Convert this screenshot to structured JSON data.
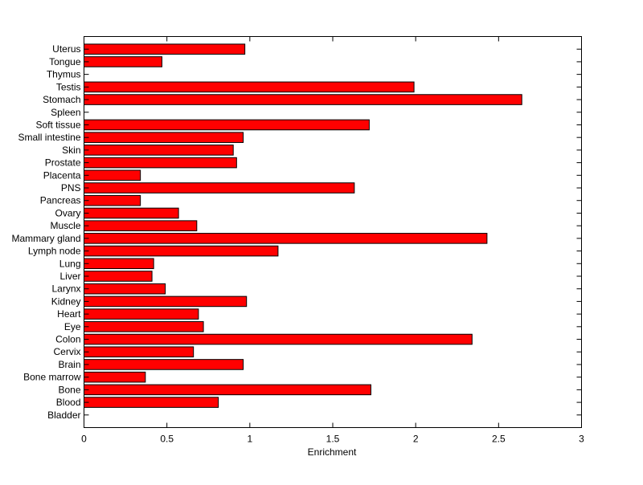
{
  "chart_data": {
    "type": "bar",
    "orientation": "horizontal",
    "title": "",
    "xlabel": "Enrichment",
    "ylabel": "",
    "xlim": [
      0,
      3
    ],
    "xticks": [
      "0",
      "0.5",
      "1",
      "1.5",
      "2",
      "2.5",
      "3"
    ],
    "xtick_values": [
      0,
      0.5,
      1,
      1.5,
      2,
      2.5,
      3
    ],
    "grid": false,
    "bar_color": "#ff0000",
    "categories": [
      "Bladder",
      "Blood",
      "Bone",
      "Bone marrow",
      "Brain",
      "Cervix",
      "Colon",
      "Eye",
      "Heart",
      "Kidney",
      "Larynx",
      "Liver",
      "Lung",
      "Lymph node",
      "Mammary gland",
      "Muscle",
      "Ovary",
      "Pancreas",
      "PNS",
      "Placenta",
      "Prostate",
      "Skin",
      "Small intestine",
      "Soft tissue",
      "Spleen",
      "Stomach",
      "Testis",
      "Thymus",
      "Tongue",
      "Uterus"
    ],
    "values": [
      0,
      0.81,
      1.73,
      0.37,
      0.96,
      0.66,
      2.34,
      0.72,
      0.69,
      0.98,
      0.49,
      0.41,
      0.42,
      1.17,
      2.43,
      0.68,
      0.57,
      0.34,
      1.63,
      0.34,
      0.92,
      0.9,
      0.96,
      1.72,
      0,
      2.64,
      1.99,
      0,
      0.47,
      0.97
    ]
  }
}
